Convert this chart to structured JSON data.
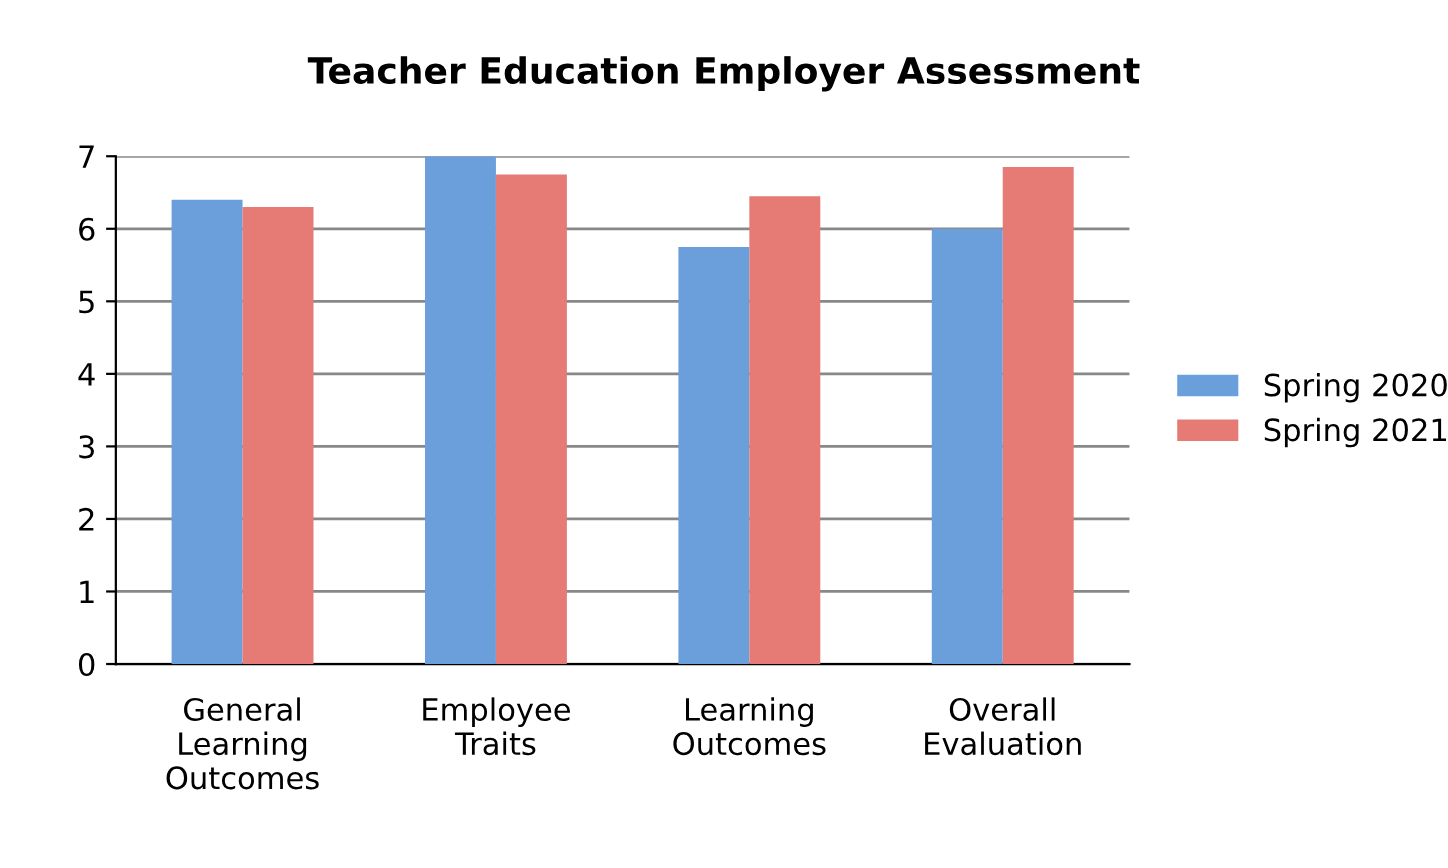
{
  "chart_data": {
    "type": "bar",
    "title": "Teacher Education Employer Assessment",
    "categories": [
      "General\nLearning\nOutcomes",
      "Employee\nTraits",
      "Learning\nOutcomes",
      "Overall\nEvaluation"
    ],
    "series": [
      {
        "name": "Spring 2020",
        "color": "#6a9fdc",
        "values": [
          6.4,
          7.0,
          5.75,
          6.0
        ]
      },
      {
        "name": "Spring 2021",
        "color": "#e57b74",
        "values": [
          6.3,
          6.75,
          6.45,
          6.85
        ]
      }
    ],
    "ylim": [
      0,
      7
    ],
    "yticks": [
      0,
      1,
      2,
      3,
      4,
      5,
      6,
      7
    ],
    "grid": "y",
    "legend": "right"
  }
}
